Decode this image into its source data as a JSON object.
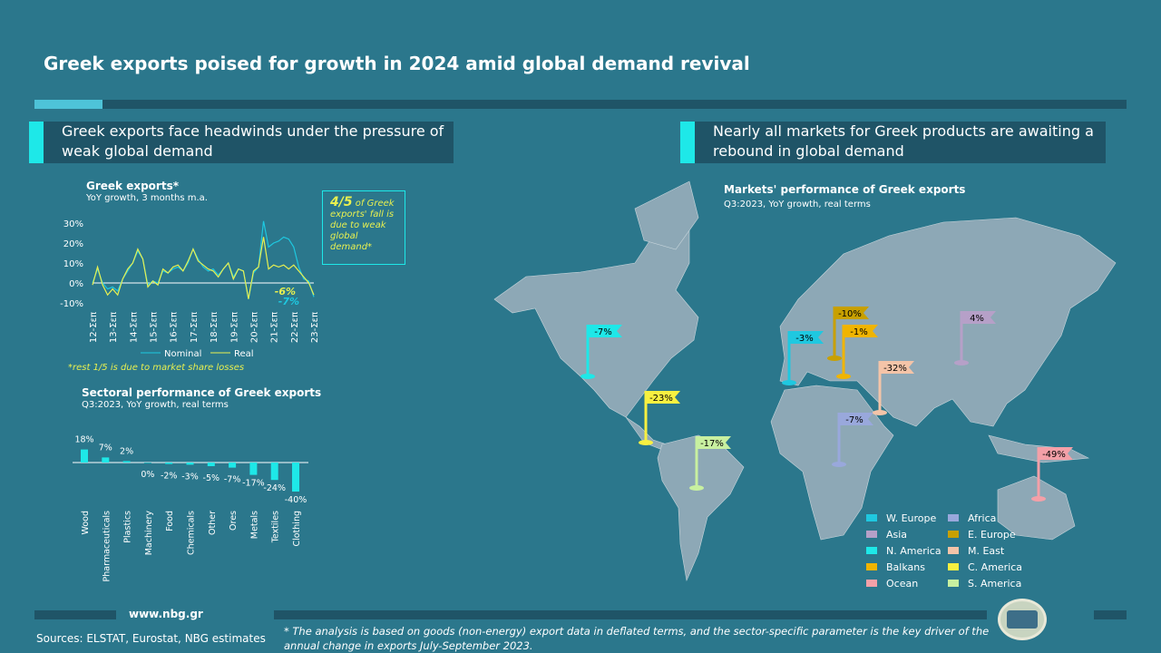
{
  "title": "Greek exports poised for growth in 2024 amid global demand revival",
  "left_section": {
    "heading": "Greek exports face headwinds under the pressure of weak global demand"
  },
  "right_section": {
    "heading": "Nearly all markets for Greek products are awaiting a rebound in global demand"
  },
  "callout": {
    "bold": "4/5",
    "text": " of Greek exports' fall is due to weak global demand*"
  },
  "footnote_left": "*rest 1/5 is due to market share losses",
  "footer": {
    "website": "www.nbg.gr",
    "sources": "Sources: ELSTAT, Eurostat, NBG estimates",
    "note": "* The analysis is based on goods (non-energy) export data in deflated terms, and the sector-specific parameter is the key driver of the annual change in exports July-September 2023."
  },
  "colors": {
    "background": "#2b778c",
    "band": "#1f5467",
    "accent": "#1ee8e8",
    "nominal": "#1ec8e0",
    "real": "#e8f050",
    "land": "#8da8b6"
  },
  "chart_data": [
    {
      "type": "line",
      "title": "Greek exports*",
      "subtitle": "YoY growth, 3 months m.a.",
      "yticks": [
        "30%",
        "20%",
        "10%",
        "0%",
        "-10%"
      ],
      "ylim": [
        -10,
        30
      ],
      "xticks": [
        "12-Σεπ",
        "13-Σεπ",
        "14-Σεπ",
        "15-Σεπ",
        "16-Σεπ",
        "17-Σεπ",
        "18-Σεπ",
        "19-Σεπ",
        "20-Σεπ",
        "21-Σεπ",
        "22-Σεπ",
        "23-Σεπ"
      ],
      "x_frequency": "quarterly, Sep 2012 - Sep 2023",
      "series": [
        {
          "name": "Nominal",
          "color": "#1ec8e0",
          "end_label": "-7%",
          "values": [
            0,
            7,
            0,
            -3,
            -2,
            -4,
            2,
            6,
            10,
            16,
            12,
            -1,
            1,
            0,
            6,
            5,
            7,
            8,
            6,
            10,
            17,
            12,
            8,
            6,
            7,
            4,
            7,
            10,
            3,
            7,
            6,
            -8,
            5,
            8,
            31,
            18,
            20,
            21,
            23,
            22,
            18,
            8,
            2,
            1,
            -7
          ]
        },
        {
          "name": "Real",
          "color": "#e8f050",
          "end_label": "-6%",
          "values": [
            -1,
            8,
            -1,
            -6,
            -3,
            -6,
            2,
            7,
            10,
            17,
            12,
            -2,
            1,
            -1,
            7,
            5,
            8,
            9,
            6,
            11,
            17,
            11,
            9,
            7,
            6,
            3,
            7,
            10,
            2,
            7,
            6,
            -8,
            6,
            8,
            23,
            7,
            9,
            8,
            9,
            7,
            9,
            6,
            3,
            0,
            -6
          ]
        }
      ]
    },
    {
      "type": "bar",
      "title": "Sectoral performance of Greek exports",
      "subtitle": "Q3:2023, YoY growth, real terms",
      "categories": [
        "Wood",
        "Pharmaceuticals",
        "Plastics",
        "Machinery",
        "Food",
        "Chemicals",
        "Other",
        "Ores",
        "Metals",
        "Textiles",
        "Clothing"
      ],
      "values": [
        18,
        7,
        2,
        0,
        -2,
        -3,
        -5,
        -7,
        -17,
        -24,
        -40
      ],
      "labels": [
        "18%",
        "7%",
        "2%",
        "0%",
        "-2%",
        "-3%",
        "-5%",
        "-7%",
        "-17%",
        "-24%",
        "-40%"
      ],
      "color": "#1ee8e8"
    },
    {
      "type": "map",
      "title": "Markets' performance of Greek exports",
      "subtitle": "Q3:2023, YoY growth, real terms",
      "markets": [
        {
          "name": "W. Europe",
          "value": "-3%",
          "color": "#1fc8e0"
        },
        {
          "name": "Asia",
          "value": "4%",
          "color": "#b6a0c8"
        },
        {
          "name": "N. America",
          "value": "-7%",
          "color": "#1ee8e8"
        },
        {
          "name": "Balkans",
          "value": "-1%",
          "color": "#f0b400"
        },
        {
          "name": "Ocean",
          "value": "-49%",
          "color": "#f4a0a8"
        },
        {
          "name": "Africa",
          "value": "-7%",
          "color": "#99a8dc"
        },
        {
          "name": "E. Europe",
          "value": "-10%",
          "color": "#c8a000"
        },
        {
          "name": "M. East",
          "value": "-32%",
          "color": "#f4c4a8"
        },
        {
          "name": "C. America",
          "value": "-23%",
          "color": "#f8f040"
        },
        {
          "name": "S. America",
          "value": "-17%",
          "color": "#c8f0a0"
        }
      ]
    }
  ]
}
